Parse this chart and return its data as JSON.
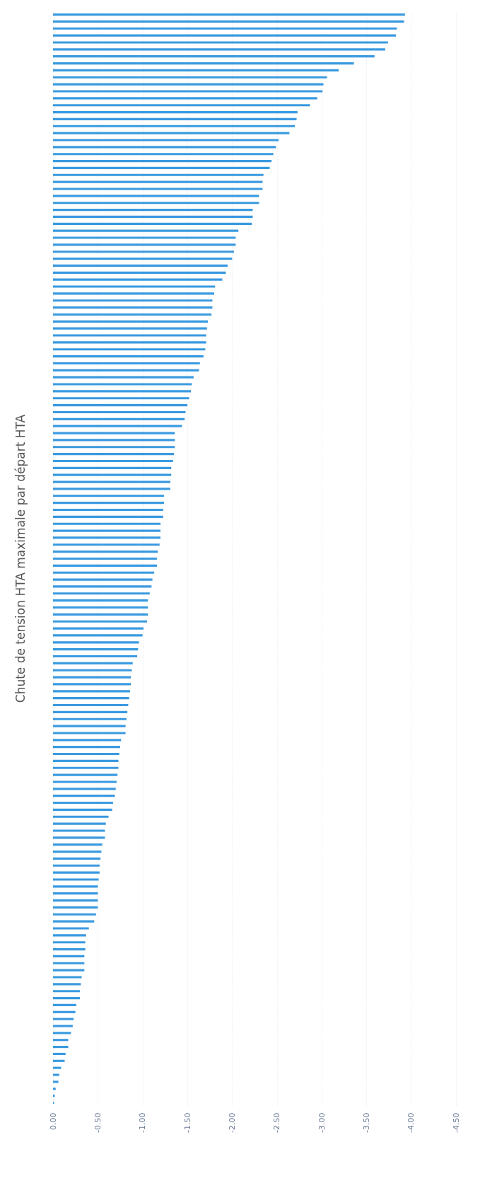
{
  "chart_data": {
    "type": "bar",
    "orientation": "horizontal",
    "title": "Chute de tension HTA maximale par départ HTA",
    "categories": [
      null,
      null,
      null,
      null,
      null,
      null,
      null,
      null,
      null,
      null,
      null,
      null,
      null,
      null,
      null,
      null,
      null,
      null,
      null,
      null,
      null,
      null,
      null,
      null,
      null,
      null,
      null,
      null,
      null,
      null,
      null,
      null,
      null,
      null,
      null,
      null,
      null,
      null,
      null,
      null,
      null,
      null,
      null,
      null,
      null,
      null,
      null,
      null,
      null,
      null,
      null,
      null,
      null,
      null,
      null,
      null,
      null,
      null,
      null,
      null,
      null,
      null,
      null,
      null,
      null,
      null,
      null,
      null,
      null,
      null,
      null,
      null,
      null,
      null,
      null,
      null,
      null,
      null,
      null,
      null,
      null,
      null,
      null,
      null,
      null,
      null,
      null,
      null,
      null,
      null,
      null,
      null,
      null,
      null,
      null,
      null,
      null,
      null,
      null,
      null,
      null,
      null,
      null,
      null,
      null,
      null,
      null,
      null,
      null,
      null,
      null,
      null,
      null,
      null,
      null,
      null,
      null,
      null,
      null,
      null,
      null,
      null,
      null,
      null,
      null,
      null,
      null,
      null,
      null,
      null,
      null,
      null,
      null,
      null,
      null,
      null,
      null,
      null,
      null,
      null,
      null,
      null,
      null,
      null,
      null,
      null,
      null,
      null,
      null,
      null,
      null,
      null,
      null,
      null,
      null,
      null,
      null
    ],
    "values": [
      -3.93,
      -3.92,
      -3.84,
      -3.83,
      -3.74,
      -3.71,
      -3.59,
      -3.36,
      -3.19,
      -3.06,
      -3.02,
      -3.01,
      -2.95,
      -2.87,
      -2.73,
      -2.72,
      -2.7,
      -2.64,
      -2.52,
      -2.49,
      -2.46,
      -2.44,
      -2.42,
      -2.35,
      -2.34,
      -2.34,
      -2.3,
      -2.3,
      -2.23,
      -2.23,
      -2.22,
      -2.07,
      -2.04,
      -2.04,
      -2.02,
      -2.0,
      -1.95,
      -1.93,
      -1.89,
      -1.81,
      -1.8,
      -1.78,
      -1.78,
      -1.77,
      -1.73,
      -1.72,
      -1.71,
      -1.71,
      -1.7,
      -1.68,
      -1.64,
      -1.63,
      -1.57,
      -1.55,
      -1.54,
      -1.52,
      -1.5,
      -1.48,
      -1.47,
      -1.44,
      -1.36,
      -1.36,
      -1.36,
      -1.35,
      -1.34,
      -1.32,
      -1.32,
      -1.31,
      -1.31,
      -1.24,
      -1.24,
      -1.23,
      -1.23,
      -1.2,
      -1.2,
      -1.2,
      -1.19,
      -1.17,
      -1.16,
      -1.16,
      -1.13,
      -1.11,
      -1.1,
      -1.08,
      -1.06,
      -1.06,
      -1.06,
      -1.05,
      -1.01,
      -1.0,
      -0.96,
      -0.95,
      -0.94,
      -0.89,
      -0.88,
      -0.87,
      -0.87,
      -0.86,
      -0.85,
      -0.84,
      -0.83,
      -0.82,
      -0.81,
      -0.81,
      -0.76,
      -0.75,
      -0.74,
      -0.73,
      -0.73,
      -0.72,
      -0.71,
      -0.7,
      -0.69,
      -0.67,
      -0.66,
      -0.62,
      -0.59,
      -0.58,
      -0.58,
      -0.55,
      -0.54,
      -0.53,
      -0.52,
      -0.52,
      -0.51,
      -0.5,
      -0.5,
      -0.5,
      -0.5,
      -0.48,
      -0.46,
      -0.4,
      -0.37,
      -0.36,
      -0.36,
      -0.35,
      -0.35,
      -0.35,
      -0.32,
      -0.31,
      -0.3,
      -0.3,
      -0.26,
      -0.25,
      -0.23,
      -0.22,
      -0.2,
      -0.17,
      -0.17,
      -0.14,
      -0.13,
      -0.09,
      -0.07,
      -0.06,
      -0.03,
      -0.02,
      -0.01
    ],
    "color": "#3a9ae0",
    "xlim": [
      0,
      -4.5
    ],
    "xticks": [
      {
        "value": 0,
        "label": "0.00"
      },
      {
        "value": -0.5,
        "label": "-0.50"
      },
      {
        "value": -1,
        "label": "-1.00"
      },
      {
        "value": -1.5,
        "label": "-1.50"
      },
      {
        "value": -2,
        "label": "-2.00"
      },
      {
        "value": -2.5,
        "label": "-2.50"
      },
      {
        "value": -3,
        "label": "-3.00"
      },
      {
        "value": -3.5,
        "label": "-3.50"
      },
      {
        "value": -4,
        "label": "-4.00"
      },
      {
        "value": -4.5,
        "label": "-4.50"
      }
    ],
    "grid": "x"
  }
}
